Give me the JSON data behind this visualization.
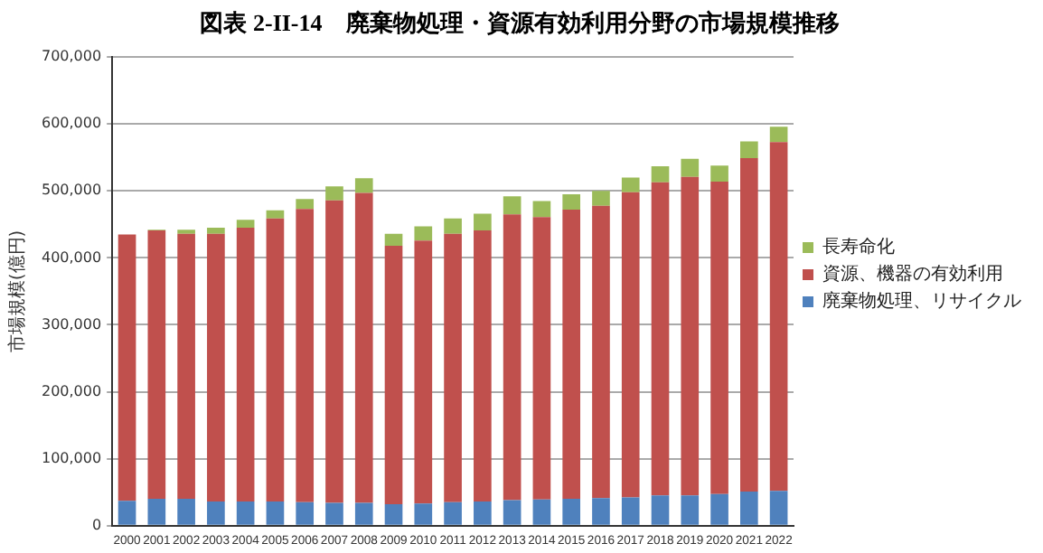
{
  "chart_data": {
    "type": "bar",
    "title": "図表 2-II-14　廃棄物処理・資源有効利用分野の市場規模推移",
    "ylabel": "市場規模(億円)",
    "stacked": true,
    "grid": "y",
    "legend": "right",
    "categories": [
      "2000",
      "2001",
      "2002",
      "2003",
      "2004",
      "2005",
      "2006",
      "2007",
      "2008",
      "2009",
      "2010",
      "2011",
      "2012",
      "2013",
      "2014",
      "2015",
      "2016",
      "2017",
      "2018",
      "2019",
      "2020",
      "2021",
      "2022"
    ],
    "ylim": [
      0,
      700000
    ],
    "yticks": [
      {
        "value": 0,
        "label": "0"
      },
      {
        "value": 100000,
        "label": "100,000"
      },
      {
        "value": 200000,
        "label": "200,000"
      },
      {
        "value": 300000,
        "label": "300,000"
      },
      {
        "value": 400000,
        "label": "400,000"
      },
      {
        "value": 500000,
        "label": "500,000"
      },
      {
        "value": 600000,
        "label": "600,000"
      },
      {
        "value": 700000,
        "label": "700,000"
      }
    ],
    "series": [
      {
        "name": "廃棄物処理、リサイクル",
        "color": "#4f81bd",
        "values": [
          37000,
          40000,
          40000,
          36000,
          36000,
          36000,
          35000,
          34000,
          34000,
          32000,
          33000,
          35000,
          36000,
          38000,
          39000,
          40000,
          41000,
          42000,
          45000,
          45000,
          47000,
          51000,
          52000
        ]
      },
      {
        "name": "資源、機器の有効利用",
        "color": "#c0504d",
        "values": [
          398000,
          401000,
          396000,
          400000,
          409000,
          423000,
          438000,
          452000,
          463000,
          386000,
          393000,
          401000,
          405000,
          427000,
          422000,
          432000,
          437000,
          456000,
          468000,
          476000,
          467000,
          498000,
          521000
        ]
      },
      {
        "name": "長寿命化",
        "color": "#9bbb59",
        "values": [
          0,
          1000,
          6000,
          9000,
          12000,
          12000,
          15000,
          21000,
          22000,
          18000,
          21000,
          23000,
          25000,
          27000,
          24000,
          23000,
          22000,
          22000,
          24000,
          27000,
          24000,
          25000,
          23000
        ]
      }
    ]
  }
}
